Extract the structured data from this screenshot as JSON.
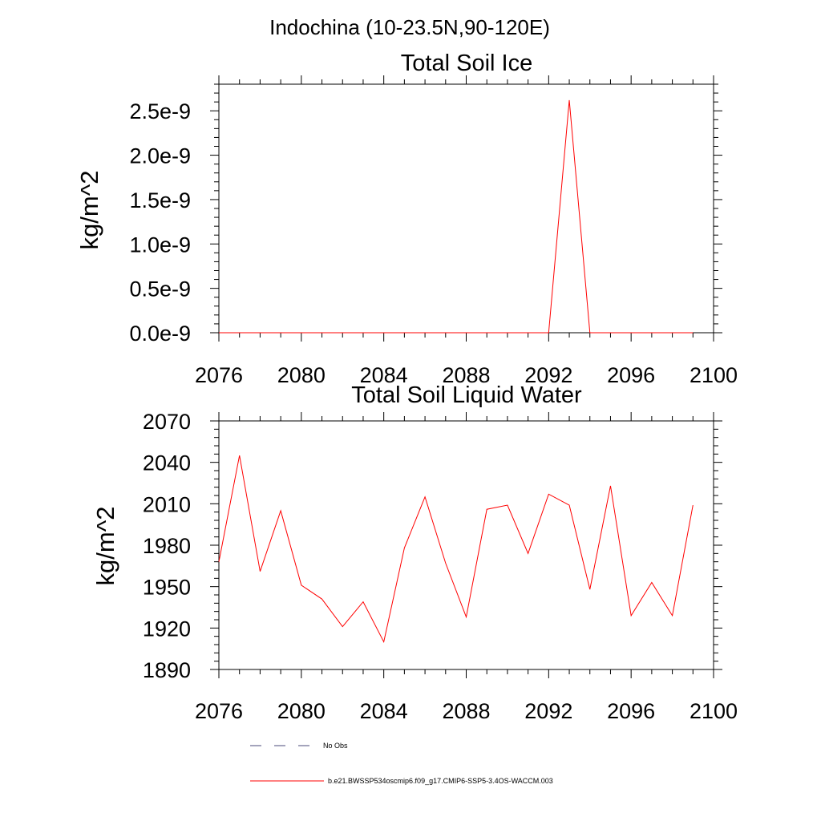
{
  "figure_title": "Indochina (10-23.5N,90-120E)",
  "chart_data": [
    {
      "type": "line",
      "title": "Total Soil Ice",
      "xlabel": "",
      "ylabel": "kg/m^2",
      "xlim": [
        2076,
        2100
      ],
      "ylim": [
        0.0,
        2.8e-09
      ],
      "x_ticks": [
        "2076",
        "2080",
        "2084",
        "2088",
        "2092",
        "2096",
        "2100"
      ],
      "x_tick_values": [
        2076,
        2080,
        2084,
        2088,
        2092,
        2096,
        2100
      ],
      "y_ticks": [
        "0.0e-9",
        "0.5e-9",
        "1.0e-9",
        "1.5e-9",
        "2.0e-9",
        "2.5e-9"
      ],
      "y_tick_values": [
        0.0,
        5e-10,
        1e-09,
        1.5e-09,
        2e-09,
        2.5e-09
      ],
      "grid": false,
      "series": [
        {
          "color": "#ff0000",
          "x": [
            2076,
            2077,
            2078,
            2079,
            2080,
            2081,
            2082,
            2083,
            2084,
            2085,
            2086,
            2087,
            2088,
            2089,
            2090,
            2091,
            2092,
            2093,
            2094,
            2095,
            2096,
            2097,
            2098,
            2099
          ],
          "values": [
            0,
            0,
            0,
            0,
            0,
            0,
            0,
            0,
            0,
            0,
            0,
            0,
            0,
            0,
            0,
            0,
            0,
            2.62e-09,
            0,
            0,
            0,
            0,
            0,
            0
          ]
        }
      ]
    },
    {
      "type": "line",
      "title": "Total Soil Liquid Water",
      "xlabel": "",
      "ylabel": "kg/m^2",
      "xlim": [
        2076,
        2100
      ],
      "ylim": [
        1890,
        2070
      ],
      "x_ticks": [
        "2076",
        "2080",
        "2084",
        "2088",
        "2092",
        "2096",
        "2100"
      ],
      "x_tick_values": [
        2076,
        2080,
        2084,
        2088,
        2092,
        2096,
        2100
      ],
      "y_ticks": [
        "1890",
        "1920",
        "1950",
        "1980",
        "2010",
        "2040",
        "2070"
      ],
      "y_tick_values": [
        1890,
        1920,
        1950,
        1980,
        2010,
        2040,
        2070
      ],
      "grid": false,
      "series": [
        {
          "color": "#ff0000",
          "x": [
            2076,
            2077,
            2078,
            2079,
            2080,
            2081,
            2082,
            2083,
            2084,
            2085,
            2086,
            2087,
            2088,
            2089,
            2090,
            2091,
            2092,
            2093,
            2094,
            2095,
            2096,
            2097,
            2098,
            2099
          ],
          "values": [
            1968,
            2045,
            1961,
            2005,
            1951,
            1941,
            1921,
            1939,
            1910,
            1978,
            2015,
            1967,
            1928,
            2006,
            2009,
            1974,
            2017,
            2009,
            1948,
            2023,
            1929,
            1953,
            1929,
            2009
          ]
        }
      ]
    }
  ],
  "legend": {
    "placement": "bottom-left",
    "entries": [
      {
        "label": "No Obs",
        "color": "#4a4a7a",
        "dash": true
      },
      {
        "label": "b.e21.BWSSP534oscmip6.f09_g17.CMIP6-SSP5-3.4OS-WACCM.003",
        "color": "#ff0000",
        "dash": false
      }
    ]
  }
}
